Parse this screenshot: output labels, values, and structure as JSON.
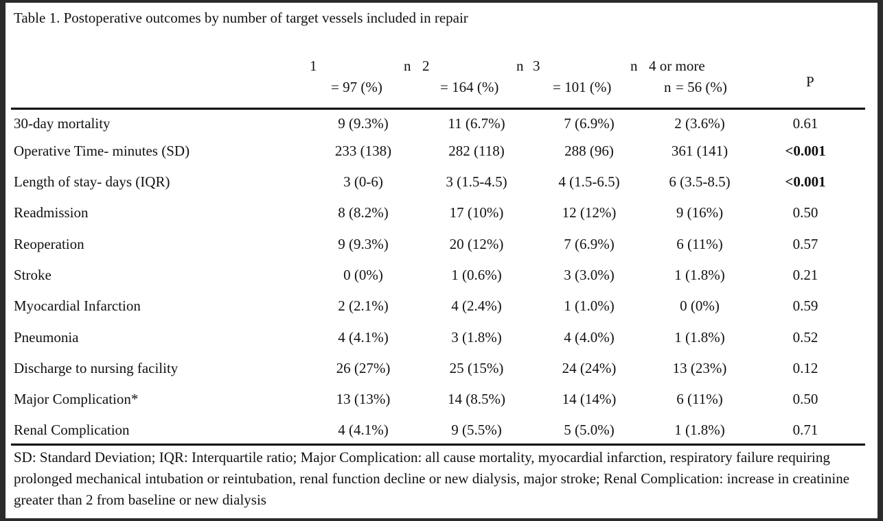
{
  "caption": "Table 1. Postoperative outcomes by number of target vessels included in repair",
  "headers": {
    "c1_top": "1",
    "c1_n": "n",
    "c1_bottom": "= 97 (%)",
    "c2_top": "2",
    "c2_n": "n",
    "c2_bottom": "= 164 (%)",
    "c3_top": "3",
    "c3_n": "n",
    "c3_bottom": "= 101 (%)",
    "c4_top": "4 or more",
    "c4_n": "n",
    "c4_bottom": "= 56 (%)",
    "p": "P"
  },
  "rows": [
    {
      "label": "30-day mortality",
      "c1": "9 (9.3%)",
      "c2": "11 (6.7%)",
      "c3": "7 (6.9%)",
      "c4": "2 (3.6%)",
      "p": "0.61"
    },
    {
      "label": "Operative Time- minutes (SD)",
      "c1": "233 (138)",
      "c2": "282 (118)",
      "c3": "288 (96)",
      "c4": "361 (141)",
      "p": "<0.001"
    },
    {
      "label": "Length of stay- days (IQR)",
      "c1": "3 (0-6)",
      "c2": "3 (1.5-4.5)",
      "c3": "4 (1.5-6.5)",
      "c4": "6 (3.5-8.5)",
      "p": "<0.001"
    },
    {
      "label": "Readmission",
      "c1": "8 (8.2%)",
      "c2": "17 (10%)",
      "c3": "12 (12%)",
      "c4": "9 (16%)",
      "p": "0.50"
    },
    {
      "label": "Reoperation",
      "c1": "9 (9.3%)",
      "c2": "20 (12%)",
      "c3": "7 (6.9%)",
      "c4": "6 (11%)",
      "p": "0.57"
    },
    {
      "label": "Stroke",
      "c1": "0 (0%)",
      "c2": "1 (0.6%)",
      "c3": "3 (3.0%)",
      "c4": "1 (1.8%)",
      "p": "0.21"
    },
    {
      "label": "Myocardial Infarction",
      "c1": "2 (2.1%)",
      "c2": "4 (2.4%)",
      "c3": "1 (1.0%)",
      "c4": "0 (0%)",
      "p": "0.59"
    },
    {
      "label": "Pneumonia",
      "c1": "4 (4.1%)",
      "c2": "3 (1.8%)",
      "c3": "4 (4.0%)",
      "c4": "1 (1.8%)",
      "p": "0.52"
    },
    {
      "label": "Discharge to nursing facility",
      "c1": "26 (27%)",
      "c2": "25 (15%)",
      "c3": "24 (24%)",
      "c4": "13 (23%)",
      "p": "0.12"
    },
    {
      "label": "Major Complication*",
      "c1": "13 (13%)",
      "c2": "14 (8.5%)",
      "c3": "14 (14%)",
      "c4": "6 (11%)",
      "p": "0.50"
    },
    {
      "label": "Renal Complication",
      "c1": "4 (4.1%)",
      "c2": "9 (5.5%)",
      "c3": "5 (5.0%)",
      "c4": "1 (1.8%)",
      "p": "0.71"
    }
  ],
  "footnote": "SD: Standard Deviation; IQR: Interquartile ratio; Major Complication: all cause mortality, myocardial infarction, respiratory failure requiring prolonged mechanical intubation or reintubation, renal function decline or new dialysis, major stroke; Renal Complication: increase in creatinine greater than 2 from baseline or new dialysis"
}
